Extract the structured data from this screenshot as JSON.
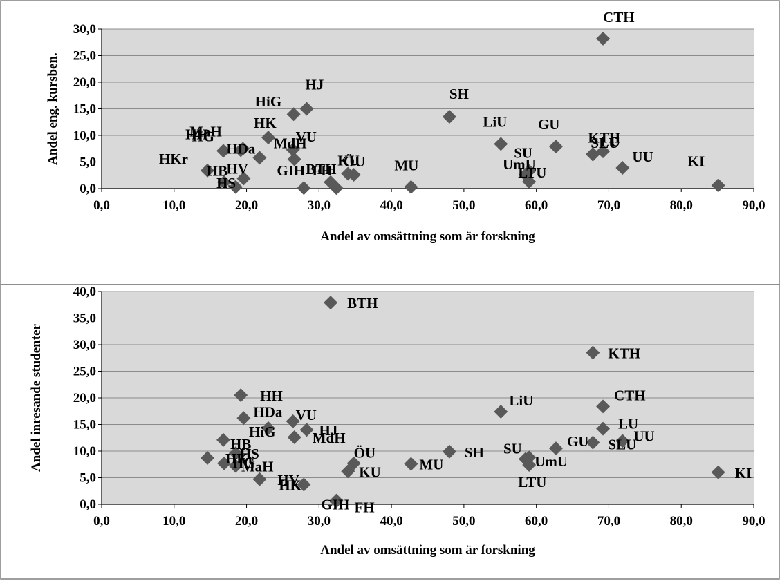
{
  "colors": {
    "plot_background": "#d9d9d9",
    "gridline": "#8c8c8c",
    "marker": "#595959",
    "frame": "#7f7f7f"
  },
  "chart_data": [
    {
      "type": "scatter",
      "xlabel": "Andel av omsättning som är forskning",
      "ylabel": "Andel eng. kursben.",
      "xlim": [
        0,
        90
      ],
      "ylim": [
        0,
        30
      ],
      "xticks": [
        "0,0",
        "10,0",
        "20,0",
        "30,0",
        "40,0",
        "50,0",
        "60,0",
        "70,0",
        "80,0",
        "90,0"
      ],
      "yticks": [
        "0,0",
        "5,0",
        "10,0",
        "15,0",
        "20,0",
        "25,0",
        "30,0"
      ],
      "grid": "horizontal",
      "marker": "diamond",
      "points": [
        {
          "label": "CTH",
          "x": 69.2,
          "y": 28.2
        },
        {
          "label": "HJ",
          "x": 28.3,
          "y": 15.0
        },
        {
          "label": "SH",
          "x": 48.0,
          "y": 13.5
        },
        {
          "label": "HiG",
          "x": 26.5,
          "y": 14.0
        },
        {
          "label": "LiU",
          "x": 55.1,
          "y": 8.4
        },
        {
          "label": "GU",
          "x": 62.7,
          "y": 7.9
        },
        {
          "label": "KTH",
          "x": 67.8,
          "y": 6.4
        },
        {
          "label": "SLU",
          "x": 67.8,
          "y": 6.5
        },
        {
          "label": "LU",
          "x": 69.2,
          "y": 7.0
        },
        {
          "label": "MaH",
          "x": 19.2,
          "y": 7.2
        },
        {
          "label": "HG",
          "x": 19.5,
          "y": 7.5
        },
        {
          "label": "HK",
          "x": 23.0,
          "y": 9.6
        },
        {
          "label": "VU",
          "x": 26.4,
          "y": 7.3
        },
        {
          "label": "HKr",
          "x": 14.6,
          "y": 3.4
        },
        {
          "label": "MdH",
          "x": 26.6,
          "y": 5.5
        },
        {
          "label": "ÖU",
          "x": 34.8,
          "y": 2.6
        },
        {
          "label": "KU",
          "x": 34.0,
          "y": 2.8
        },
        {
          "label": "HH",
          "x": 16.8,
          "y": 7.1
        },
        {
          "label": "HDa",
          "x": 21.8,
          "y": 5.8
        },
        {
          "label": "HB",
          "x": 18.5,
          "y": 0.3
        },
        {
          "label": "HV",
          "x": 19.6,
          "y": 1.9
        },
        {
          "label": "HS",
          "x": 16.9,
          "y": 1.2
        },
        {
          "label": "BTH",
          "x": 31.6,
          "y": 1.2
        },
        {
          "label": "FH",
          "x": 32.4,
          "y": 0.1
        },
        {
          "label": "GIH",
          "x": 27.9,
          "y": 0.1
        },
        {
          "label": "MU",
          "x": 42.7,
          "y": 0.3
        },
        {
          "label": "SU",
          "x": 59.0,
          "y": 3.3
        },
        {
          "label": "UmU",
          "x": 58.5,
          "y": 2.6
        },
        {
          "label": "LTU",
          "x": 59.0,
          "y": 1.3
        },
        {
          "label": "UU",
          "x": 71.9,
          "y": 3.9
        },
        {
          "label": "KI",
          "x": 85.1,
          "y": 0.6
        }
      ]
    },
    {
      "type": "scatter",
      "xlabel": "Andel av omsättning som är forskning",
      "ylabel": "Andel inresande studenter",
      "xlim": [
        0,
        90
      ],
      "ylim": [
        0,
        40
      ],
      "xticks": [
        "0,0",
        "10,0",
        "20,0",
        "30,0",
        "40,0",
        "50,0",
        "60,0",
        "70,0",
        "80,0",
        "90,0"
      ],
      "yticks": [
        "0,0",
        "5,0",
        "10,0",
        "15,0",
        "20,0",
        "25,0",
        "30,0",
        "35,0",
        "40,0"
      ],
      "grid": "horizontal",
      "marker": "diamond",
      "points": [
        {
          "label": "BTH",
          "x": 31.6,
          "y": 37.9
        },
        {
          "label": "KTH",
          "x": 67.8,
          "y": 28.5
        },
        {
          "label": "CTH",
          "x": 69.2,
          "y": 18.4
        },
        {
          "label": "HH",
          "x": 19.2,
          "y": 20.5
        },
        {
          "label": "LiU",
          "x": 55.1,
          "y": 17.4
        },
        {
          "label": "HDa",
          "x": 19.6,
          "y": 16.2
        },
        {
          "label": "VU",
          "x": 26.4,
          "y": 15.6
        },
        {
          "label": "HiG",
          "x": 23.0,
          "y": 14.3
        },
        {
          "label": "HJ",
          "x": 28.3,
          "y": 14.0
        },
        {
          "label": "LU",
          "x": 69.2,
          "y": 14.2
        },
        {
          "label": "MdH",
          "x": 26.6,
          "y": 12.6
        },
        {
          "label": "HB",
          "x": 16.8,
          "y": 12.1
        },
        {
          "label": "UU",
          "x": 71.9,
          "y": 11.9
        },
        {
          "label": "SLU",
          "x": 67.8,
          "y": 11.6
        },
        {
          "label": "GU",
          "x": 62.7,
          "y": 10.5
        },
        {
          "label": "SH",
          "x": 48.0,
          "y": 9.9
        },
        {
          "label": "HS",
          "x": 18.5,
          "y": 9.6
        },
        {
          "label": "SU",
          "x": 58.5,
          "y": 8.5
        },
        {
          "label": "UmU",
          "x": 59.0,
          "y": 8.8
        },
        {
          "label": "LTU",
          "x": 59.0,
          "y": 7.4
        },
        {
          "label": "ÖU",
          "x": 34.8,
          "y": 7.7
        },
        {
          "label": "KU",
          "x": 34.0,
          "y": 6.2
        },
        {
          "label": "MU",
          "x": 42.7,
          "y": 7.6
        },
        {
          "label": "HKr",
          "x": 14.6,
          "y": 8.7
        },
        {
          "label": "HG",
          "x": 16.9,
          "y": 7.7
        },
        {
          "label": "MaH",
          "x": 18.5,
          "y": 7.2
        },
        {
          "label": "HV",
          "x": 21.8,
          "y": 4.7
        },
        {
          "label": "HK",
          "x": 27.9,
          "y": 3.7
        },
        {
          "label": "GIH",
          "x": 32.4,
          "y": 0.7
        },
        {
          "label": "FH",
          "x": 32.4,
          "y": 0.6
        },
        {
          "label": "KI",
          "x": 85.1,
          "y": 6.0
        }
      ]
    }
  ]
}
